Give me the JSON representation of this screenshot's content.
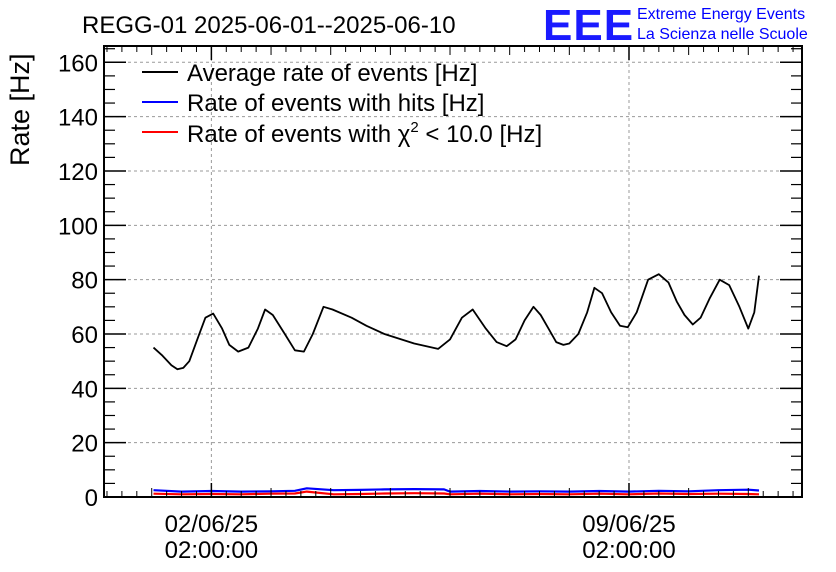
{
  "chart_data": {
    "type": "line",
    "title": "REGG-01 2025-06-01--2025-06-10",
    "ylabel": "Rate [Hz]",
    "xlabel": "",
    "ylim": [
      0,
      166
    ],
    "yticks": [
      0,
      20,
      40,
      60,
      80,
      100,
      120,
      140,
      160
    ],
    "yticks_labels": [
      "0",
      "20",
      "40",
      "60",
      "80",
      "100",
      "120",
      "140",
      "160"
    ],
    "xlim_days": [
      -0.8,
      10.9
    ],
    "xticks": [
      {
        "day": 1,
        "date": "02/06/25",
        "time": "02:00:00"
      },
      {
        "day": 8,
        "date": "09/06/25",
        "time": "02:00:00"
      }
    ],
    "grid": true,
    "legend_position": "top-left",
    "series": [
      {
        "name": "Average rate of events [Hz]",
        "color": "#000000",
        "x_days": [
          0.03,
          0.18,
          0.33,
          0.43,
          0.53,
          0.63,
          0.78,
          0.9,
          1.03,
          1.18,
          1.3,
          1.45,
          1.62,
          1.78,
          1.9,
          2.03,
          2.23,
          2.4,
          2.55,
          2.7,
          2.88,
          3.03,
          3.35,
          3.6,
          3.9,
          4.4,
          4.8,
          5.0,
          5.2,
          5.38,
          5.6,
          5.78,
          5.95,
          6.1,
          6.25,
          6.4,
          6.52,
          6.65,
          6.78,
          6.9,
          7.0,
          7.15,
          7.3,
          7.42,
          7.55,
          7.7,
          7.85,
          7.98,
          8.13,
          8.32,
          8.5,
          8.66,
          8.8,
          8.93,
          9.07,
          9.2,
          9.35,
          9.52,
          9.68,
          9.85,
          10.0,
          10.1,
          10.18
        ],
        "values": [
          55,
          52,
          48.5,
          47,
          47.5,
          50,
          59,
          66,
          67.5,
          62,
          56,
          53.5,
          55,
          62,
          69,
          67,
          60,
          54,
          53.5,
          60,
          70,
          69,
          66,
          63,
          60,
          56.5,
          54.5,
          58,
          66,
          69,
          62,
          57,
          55.5,
          58,
          65,
          70,
          67,
          62,
          57,
          56,
          56.5,
          60,
          68,
          77,
          75,
          68,
          63,
          62.5,
          68,
          80,
          82,
          79,
          72,
          67,
          63.5,
          66,
          73,
          80,
          78,
          70,
          62,
          68,
          81.5
        ]
      },
      {
        "name": "Rate of events with hits [Hz]",
        "color": "#0000ff",
        "x_days": [
          0.03,
          0.5,
          1.0,
          1.5,
          2.0,
          2.4,
          2.6,
          3.05,
          3.5,
          3.9,
          4.4,
          4.9,
          5.0,
          5.5,
          6.0,
          6.5,
          7.0,
          7.5,
          8.0,
          8.5,
          9.0,
          9.5,
          10.0,
          10.18
        ],
        "values": [
          2.5,
          2.0,
          2.2,
          2.0,
          2.1,
          2.3,
          3.2,
          2.5,
          2.6,
          2.8,
          2.9,
          2.8,
          2.0,
          2.2,
          2.0,
          2.1,
          2.0,
          2.2,
          2.0,
          2.3,
          2.1,
          2.5,
          2.7,
          2.4
        ]
      },
      {
        "name": "Rate of events with χ² < 10.0 [Hz]",
        "color": "#ff0000",
        "x_days": [
          0.03,
          0.5,
          1.0,
          1.5,
          2.0,
          2.4,
          2.6,
          3.05,
          3.5,
          3.9,
          4.4,
          4.9,
          5.0,
          5.5,
          6.0,
          6.5,
          7.0,
          7.5,
          8.0,
          8.5,
          9.0,
          9.5,
          10.0,
          10.18
        ],
        "values": [
          1.2,
          1.0,
          1.1,
          1.0,
          1.2,
          1.3,
          2.0,
          1.0,
          1.1,
          1.3,
          1.4,
          1.3,
          1.0,
          1.2,
          1.0,
          1.1,
          1.0,
          1.2,
          1.0,
          1.3,
          1.1,
          1.2,
          1.1,
          1.0
        ]
      }
    ],
    "legend": [
      {
        "label": "Average rate of events [Hz]",
        "color": "#000000"
      },
      {
        "label": "Rate of events with hits [Hz]",
        "color": "#0000ff"
      },
      {
        "label_prefix": "Rate of events with χ",
        "label_sup": "2",
        "label_suffix": " < 10.0 [Hz]",
        "color": "#ff0000"
      }
    ]
  },
  "logo": {
    "text": "EEE",
    "line1": "Extreme Energy Events",
    "line2": "La Scienza nelle Scuole",
    "color": "#0000ff"
  }
}
